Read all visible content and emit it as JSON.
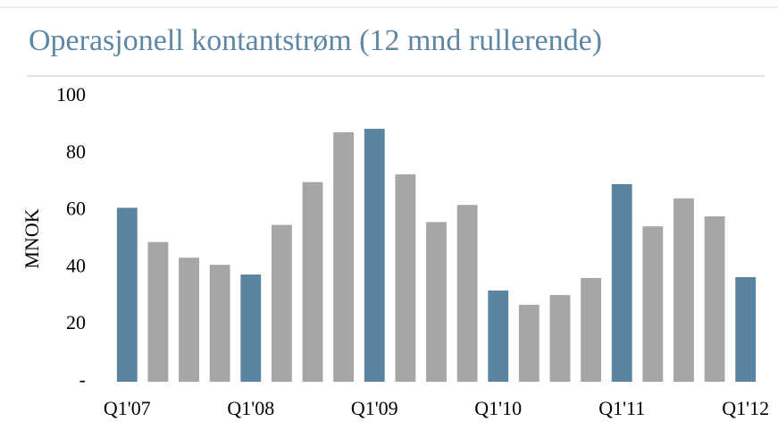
{
  "chart_data": {
    "type": "bar",
    "title": "Operasjonell kontantstrøm (12 mnd rullerende)",
    "y_label": "MNOK",
    "categories": [
      "Q1'07",
      null,
      null,
      null,
      "Q1'08",
      null,
      null,
      null,
      "Q1'09",
      null,
      null,
      null,
      "Q1'10",
      null,
      null,
      null,
      "Q1'11",
      null,
      null,
      null,
      "Q1'12"
    ],
    "values": [
      61,
      49,
      43.5,
      41,
      37.6,
      55,
      70,
      87.5,
      88.7,
      72.7,
      56,
      62,
      32,
      27,
      30.4,
      36.4,
      69.3,
      54.5,
      64.3,
      58,
      36.7
    ],
    "colors": [
      "#5b84a0",
      "#a6a6a6",
      "#a6a6a6",
      "#a6a6a6",
      "#5b84a0",
      "#a6a6a6",
      "#a6a6a6",
      "#a6a6a6",
      "#5b84a0",
      "#a6a6a6",
      "#a6a6a6",
      "#a6a6a6",
      "#5b84a0",
      "#a6a6a6",
      "#a6a6a6",
      "#a6a6a6",
      "#5b84a0",
      "#a6a6a6",
      "#a6a6a6",
      "#a6a6a6",
      "#5b84a0"
    ],
    "ylim": [
      0,
      100
    ],
    "yticks": [
      {
        "value": 0,
        "label": "-"
      },
      20,
      40,
      60,
      80,
      100
    ],
    "grid": false
  }
}
